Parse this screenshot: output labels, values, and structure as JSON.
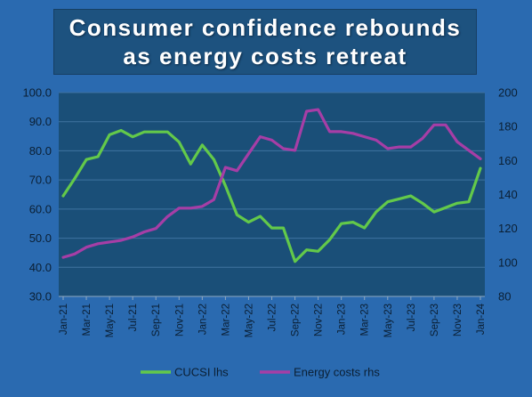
{
  "title_lines": [
    "Consumer confidence rebounds",
    "as energy costs retreat"
  ],
  "colors": {
    "cucsi": "#63c94a",
    "energy": "#a63ea6",
    "plot_bg": "#1a4f78",
    "page_bg": "#2a6ab0"
  },
  "chart_data": {
    "type": "line",
    "x": [
      "Jan-21",
      "Feb-21",
      "Mar-21",
      "Apr-21",
      "May-21",
      "Jun-21",
      "Jul-21",
      "Aug-21",
      "Sep-21",
      "Oct-21",
      "Nov-21",
      "Dec-21",
      "Jan-22",
      "Feb-22",
      "Mar-22",
      "Apr-22",
      "May-22",
      "Jun-22",
      "Jul-22",
      "Aug-22",
      "Sep-22",
      "Oct-22",
      "Nov-22",
      "Dec-22",
      "Jan-23",
      "Feb-23",
      "Mar-23",
      "Apr-23",
      "May-23",
      "Jun-23",
      "Jul-23",
      "Aug-23",
      "Sep-23",
      "Oct-23",
      "Nov-23",
      "Dec-23",
      "Jan-24"
    ],
    "x_tick_labels": [
      "Jan-21",
      "Mar-21",
      "May-21",
      "Jul-21",
      "Sep-21",
      "Nov-21",
      "Jan-22",
      "Mar-22",
      "May-22",
      "Jul-22",
      "Sep-22",
      "Nov-22",
      "Jan-23",
      "Mar-23",
      "May-23",
      "Jul-23",
      "Sep-23",
      "Nov-23",
      "Jan-24"
    ],
    "y_left": {
      "ylim": [
        30,
        100
      ],
      "ticks": [
        "30.0",
        "40.0",
        "50.0",
        "60.0",
        "70.0",
        "80.0",
        "90.0",
        "100.0"
      ]
    },
    "y_right": {
      "ylim": [
        80,
        200
      ],
      "ticks": [
        "80",
        "100",
        "120",
        "140",
        "160",
        "180",
        "200"
      ]
    },
    "series": [
      {
        "name": "CUCSI lhs",
        "axis": "left",
        "values": [
          64.5,
          70.5,
          77.0,
          78.0,
          85.5,
          87.0,
          84.8,
          86.5,
          86.5,
          86.5,
          83.0,
          75.5,
          82.0,
          77.0,
          68.0,
          58.0,
          55.5,
          57.5,
          53.5,
          53.5,
          42.0,
          46.0,
          45.5,
          49.5,
          55.0,
          55.5,
          53.5,
          59.0,
          62.5,
          63.5,
          64.5,
          62.0,
          59.0,
          60.5,
          62.0,
          62.5,
          74.0
        ]
      },
      {
        "name": "Energy costs rhs",
        "axis": "right",
        "values": [
          103,
          105,
          109,
          111,
          112,
          113,
          115,
          118,
          120,
          127,
          132,
          132,
          133,
          137,
          156,
          154,
          164,
          174,
          172,
          167,
          166,
          189,
          190,
          177,
          177,
          176,
          174,
          172,
          167,
          168,
          168,
          173,
          181,
          181,
          171,
          166,
          161
        ]
      }
    ]
  }
}
